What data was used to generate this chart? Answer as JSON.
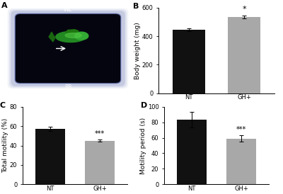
{
  "panel_B": {
    "categories": [
      "NT",
      "GH+"
    ],
    "values": [
      445,
      535
    ],
    "errors": [
      10,
      12
    ],
    "colors": [
      "#111111",
      "#a8a8a8"
    ],
    "ylabel": "Body weight (mg)",
    "ylim": [
      0,
      600
    ],
    "yticks": [
      0,
      200,
      400,
      600
    ],
    "significance": [
      "",
      "*"
    ],
    "sig_fontsize": 8
  },
  "panel_C": {
    "categories": [
      "NT",
      "GH+"
    ],
    "values": [
      57,
      45
    ],
    "errors": [
      2.0,
      1.2
    ],
    "colors": [
      "#111111",
      "#a8a8a8"
    ],
    "ylabel": "Total motility (%)",
    "ylim": [
      0,
      80
    ],
    "yticks": [
      0,
      20,
      40,
      60,
      80
    ],
    "significance": [
      "",
      "***"
    ],
    "sig_fontsize": 7
  },
  "panel_D": {
    "categories": [
      "NT",
      "GH+"
    ],
    "values": [
      83,
      59
    ],
    "errors": [
      10,
      4
    ],
    "colors": [
      "#111111",
      "#a8a8a8"
    ],
    "ylabel": "Motility period (s)",
    "ylim": [
      0,
      100
    ],
    "yticks": [
      0,
      20,
      40,
      60,
      80,
      100
    ],
    "significance": [
      "",
      "***"
    ],
    "sig_fontsize": 7
  },
  "panel_labels_fontsize": 8,
  "axis_fontsize": 6.5,
  "tick_fontsize": 6,
  "bar_width": 0.6,
  "bg_color": "#ffffff"
}
